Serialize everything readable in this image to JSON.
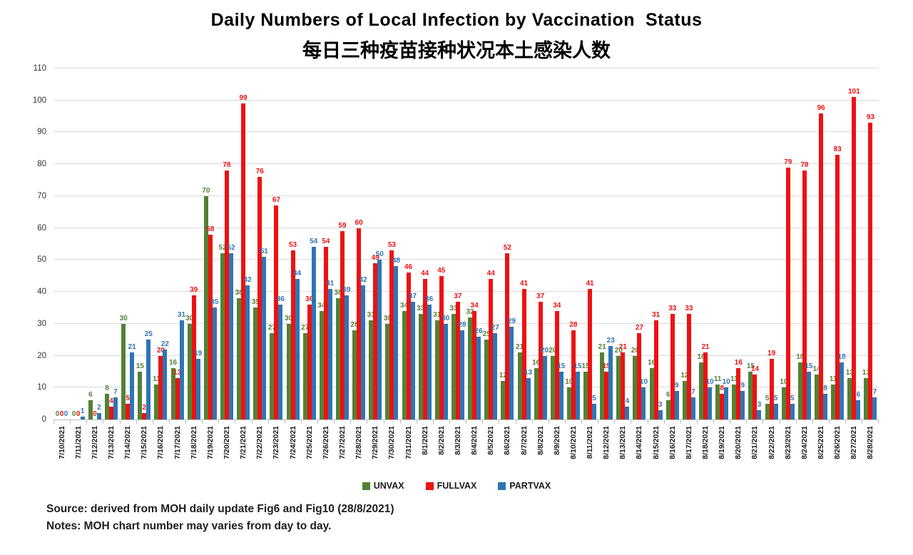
{
  "title": {
    "line1": "Daily Numbers of Local Infection by Vaccination  Status",
    "line2": "每日三种疫苗接种状况本土感染人数"
  },
  "source_line": "Source:  derived from MOH daily update Fig6 and Fig10 (28/8/2021)",
  "notes_line": "Notes: MOH chart number may varies from day to day.",
  "chart_data": {
    "type": "bar",
    "title": "Daily Numbers of Local Infection by Vaccination Status / 每日三种疫苗接种状况本土感染人数",
    "xlabel": "",
    "ylabel": "",
    "ylim": [
      0,
      110
    ],
    "ytick_step": 10,
    "grid": true,
    "legend_position": "bottom",
    "categories": [
      "7/10/2021",
      "7/11/2021",
      "7/12/2021",
      "7/13/2021",
      "7/14/2021",
      "7/15/2021",
      "7/16/2021",
      "7/17/2021",
      "7/18/2021",
      "7/19/2021",
      "7/20/2021",
      "7/21/2021",
      "7/22/2021",
      "7/23/2021",
      "7/24/2021",
      "7/25/2021",
      "7/26/2021",
      "7/27/2021",
      "7/28/2021",
      "7/29/2021",
      "7/30/2021",
      "7/31/2021",
      "8/1/2021",
      "8/2/2021",
      "8/3/2021",
      "8/4/2021",
      "8/5/2021",
      "8/6/2021",
      "8/7/2021",
      "8/8/2021",
      "8/9/2021",
      "8/10/2021",
      "8/11/2021",
      "8/12/2021",
      "8/13/2021",
      "8/14/2021",
      "8/15/2021",
      "8/16/2021",
      "8/17/2021",
      "8/18/2021",
      "8/19/2021",
      "8/20/2021",
      "8/21/2021",
      "8/22/2021",
      "8/23/2021",
      "8/24/2021",
      "8/25/2021",
      "8/26/2021",
      "8/27/2021",
      "8/28/2021"
    ],
    "series": [
      {
        "name": "UNVAX",
        "color": "#538135",
        "values": [
          0,
          0,
          6,
          8,
          30,
          15,
          11,
          16,
          30,
          70,
          52,
          38,
          35,
          27,
          30,
          27,
          34,
          38,
          28,
          31,
          30,
          34,
          33,
          31,
          33,
          32,
          25,
          12,
          21,
          16,
          20,
          10,
          15,
          21,
          20,
          20,
          16,
          6,
          12,
          18,
          11,
          11,
          15,
          5,
          10,
          18,
          14,
          11,
          13,
          13
        ]
      },
      {
        "name": "FULLVAX",
        "color": "#ee1111",
        "values": [
          0,
          0,
          0,
          4,
          5,
          2,
          20,
          13,
          39,
          58,
          78,
          99,
          76,
          67,
          53,
          36,
          54,
          59,
          60,
          49,
          53,
          46,
          44,
          45,
          37,
          34,
          44,
          52,
          41,
          37,
          34,
          28,
          41,
          15,
          21,
          27,
          31,
          33,
          33,
          21,
          8,
          16,
          14,
          19,
          79,
          78,
          96,
          83,
          101,
          93
        ]
      },
      {
        "name": "PARTVAX",
        "color": "#2e75b6",
        "values": [
          0,
          1,
          2,
          7,
          21,
          25,
          22,
          31,
          19,
          35,
          52,
          42,
          51,
          36,
          44,
          54,
          41,
          39,
          42,
          50,
          48,
          37,
          36,
          30,
          28,
          26,
          27,
          29,
          13,
          20,
          15,
          15,
          5,
          23,
          4,
          10,
          3,
          9,
          7,
          10,
          10,
          9,
          3,
          5,
          5,
          15,
          8,
          18,
          6,
          7
        ]
      }
    ]
  }
}
